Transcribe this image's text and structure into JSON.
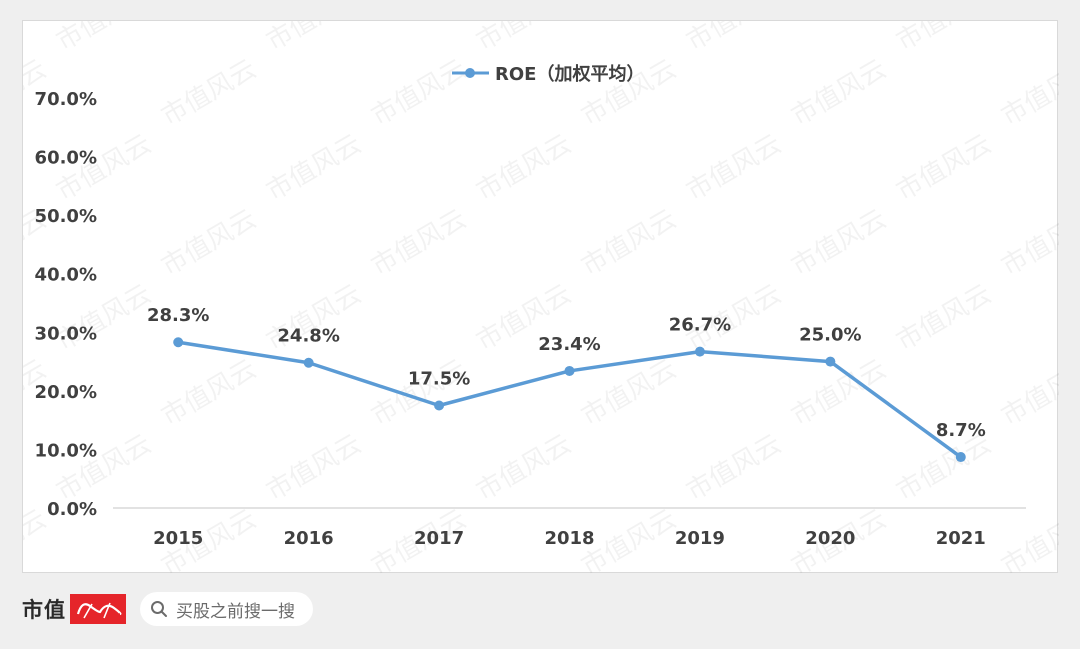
{
  "chart_data": {
    "type": "line",
    "legend": "top-center",
    "grid": false,
    "x": [
      "2015",
      "2016",
      "2017",
      "2018",
      "2019",
      "2020",
      "2021"
    ],
    "ylim": [
      0,
      70
    ],
    "yticks": [
      "0.0%",
      "10.0%",
      "20.0%",
      "30.0%",
      "40.0%",
      "50.0%",
      "60.0%",
      "70.0%"
    ],
    "ytick_values": [
      0,
      10,
      20,
      30,
      40,
      50,
      60,
      70
    ],
    "series": [
      {
        "name": "ROE（加权平均）",
        "color": "#5b9bd5",
        "values": [
          28.3,
          24.8,
          17.5,
          23.4,
          26.7,
          25.0,
          8.7
        ],
        "labels": [
          "28.3%",
          "24.8%",
          "17.5%",
          "23.4%",
          "26.7%",
          "25.0%",
          "8.7%"
        ]
      }
    ]
  },
  "watermark_text": "市值风云",
  "footer": {
    "brand_text": "市值",
    "search_icon": "search-icon",
    "search_text": "买股之前搜一搜"
  }
}
